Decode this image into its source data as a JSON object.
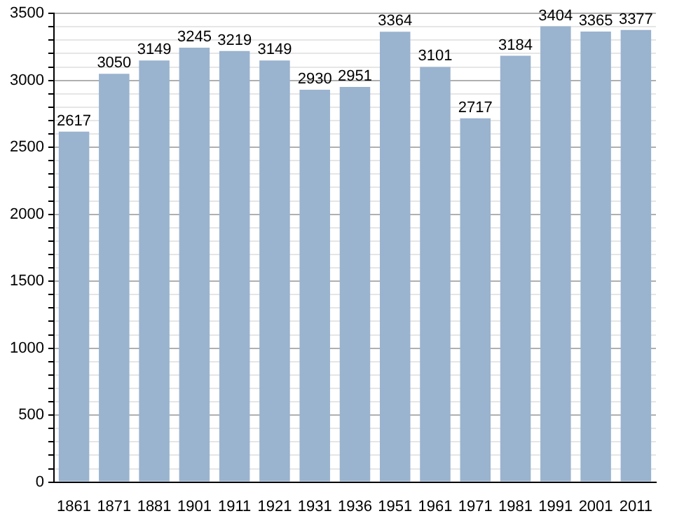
{
  "chart_data": {
    "type": "bar",
    "categories": [
      "1861",
      "1871",
      "1881",
      "1901",
      "1911",
      "1921",
      "1931",
      "1936",
      "1951",
      "1961",
      "1971",
      "1981",
      "1991",
      "2001",
      "2011"
    ],
    "values": [
      2617,
      3050,
      3149,
      3245,
      3219,
      3149,
      2930,
      2951,
      3364,
      3101,
      2717,
      3184,
      3404,
      3365,
      3377
    ],
    "color": "#9ab3cf",
    "ylim": [
      0,
      3500
    ],
    "yticks": [
      0,
      {
        "value": 100,
        "label": null
      },
      {
        "value": 200,
        "label": null
      },
      {
        "value": 300,
        "label": null
      },
      {
        "value": 400,
        "label": null
      },
      500,
      {
        "value": 600,
        "label": null
      },
      {
        "value": 700,
        "label": null
      },
      {
        "value": 800,
        "label": null
      },
      {
        "value": 900,
        "label": null
      },
      1000,
      {
        "value": 1100,
        "label": null
      },
      {
        "value": 1200,
        "label": null
      },
      {
        "value": 1300,
        "label": null
      },
      {
        "value": 1400,
        "label": null
      },
      1500,
      {
        "value": 1600,
        "label": null
      },
      {
        "value": 1700,
        "label": null
      },
      {
        "value": 1800,
        "label": null
      },
      {
        "value": 1900,
        "label": null
      },
      2000,
      {
        "value": 2100,
        "label": null
      },
      {
        "value": 2200,
        "label": null
      },
      {
        "value": 2300,
        "label": null
      },
      {
        "value": 2400,
        "label": null
      },
      2500,
      {
        "value": 2600,
        "label": null
      },
      {
        "value": 2700,
        "label": null
      },
      {
        "value": 2800,
        "label": null
      },
      {
        "value": 2900,
        "label": null
      },
      3000,
      {
        "value": 3100,
        "label": null
      },
      {
        "value": 3200,
        "label": null
      },
      {
        "value": 3300,
        "label": null
      },
      {
        "value": 3400,
        "label": null
      },
      3500
    ],
    "grid": "y",
    "data_labels": true
  }
}
